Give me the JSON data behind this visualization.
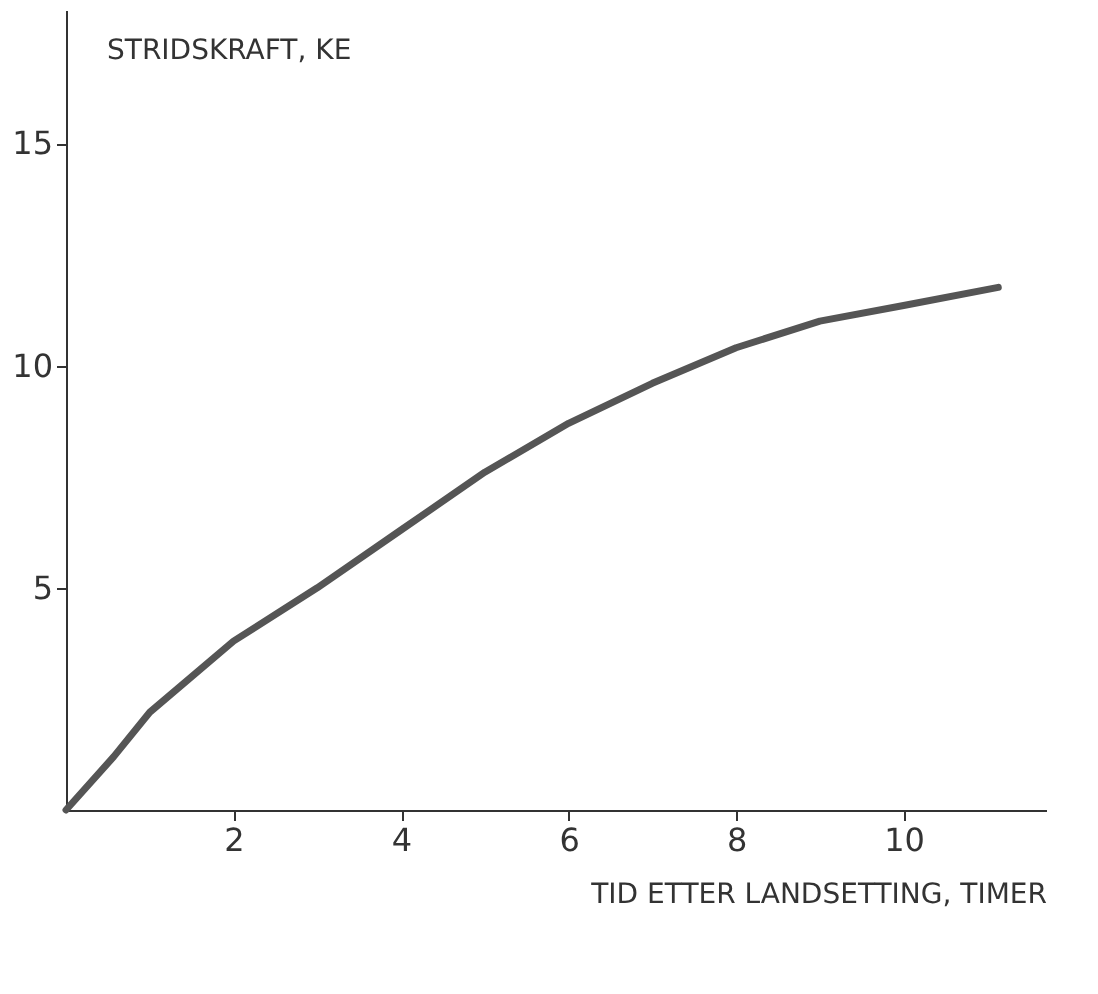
{
  "chart_data": {
    "type": "line",
    "xlabel": "TID ETTER LANDSETTING, TIMER",
    "ylabel": "STRIDSKRAFT, KE",
    "x": [
      0,
      0.57,
      1,
      2,
      3,
      4,
      5,
      6,
      7,
      8,
      9,
      10,
      11.13
    ],
    "series": [
      {
        "color": "#555555",
        "values": [
          0,
          1.2,
          2.2,
          3.8,
          5.0,
          6.3,
          7.6,
          8.7,
          9.6,
          10.4,
          11.0,
          11.35,
          11.76
        ]
      }
    ],
    "xlim": [
      0,
      11.7
    ],
    "ylim": [
      0,
      18
    ],
    "xticks": [
      2,
      4,
      6,
      8,
      10
    ],
    "yticks": [
      5,
      10,
      15
    ],
    "grid": false,
    "legend": false,
    "marker": "none",
    "line_style": "solid"
  }
}
